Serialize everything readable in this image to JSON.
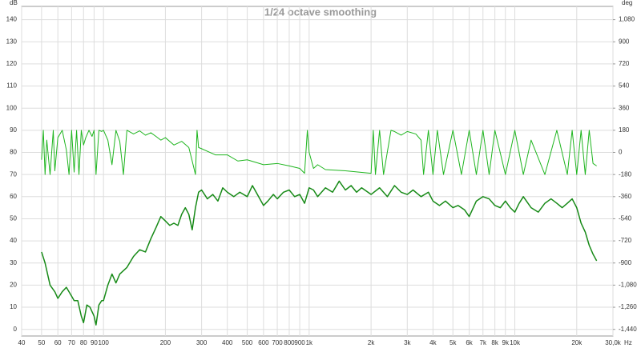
{
  "chart_data": {
    "type": "line",
    "title": "1/24 octave smoothing",
    "ylabel": "dB",
    "y2label": "deg",
    "xlabel": "Hz",
    "xscale": "log",
    "grid": true,
    "xlim": [
      40,
      30000
    ],
    "ylim": [
      -3,
      146
    ],
    "y2lim": [
      -1494,
      1188
    ],
    "xticks": [
      40,
      50,
      60,
      70,
      80,
      90,
      100,
      200,
      300,
      400,
      500,
      600,
      700,
      800,
      900,
      {
        "value": 1000,
        "label": "1k"
      },
      {
        "value": 2000,
        "label": "2k"
      },
      {
        "value": 3000,
        "label": "3k"
      },
      {
        "value": 4000,
        "label": "4k"
      },
      {
        "value": 5000,
        "label": "5k"
      },
      {
        "value": 6000,
        "label": "6k"
      },
      {
        "value": 7000,
        "label": "7k"
      },
      {
        "value": 8000,
        "label": "8k"
      },
      {
        "value": 9000,
        "label": "9k"
      },
      {
        "value": 10000,
        "label": "10k"
      },
      {
        "value": 20000,
        "label": "20k"
      },
      {
        "value": 30000,
        "label": "30,0k"
      }
    ],
    "yticks": [
      0,
      10,
      20,
      30,
      40,
      50,
      60,
      70,
      80,
      90,
      100,
      110,
      120,
      130,
      140
    ],
    "y2ticks": [
      {
        "value": -1440,
        "label": "-1,440"
      },
      {
        "value": -1260,
        "label": "-1,260"
      },
      {
        "value": -1080,
        "label": "-1,080"
      },
      -900,
      -720,
      -540,
      -360,
      -180,
      0,
      180,
      360,
      540,
      720,
      900,
      {
        "value": 1080,
        "label": "1,080"
      }
    ],
    "series": [
      {
        "color": "#178a17",
        "x": [
          50,
          52,
          55,
          58,
          60,
          63,
          66,
          70,
          72,
          75,
          78,
          80,
          83,
          86,
          90,
          92,
          95,
          98,
          100,
          105,
          110,
          115,
          120,
          130,
          140,
          150,
          160,
          170,
          180,
          190,
          200,
          210,
          220,
          230,
          240,
          250,
          260,
          270,
          280,
          290,
          300,
          320,
          340,
          360,
          380,
          400,
          430,
          460,
          500,
          530,
          560,
          600,
          630,
          670,
          700,
          750,
          800,
          850,
          900,
          950,
          1000,
          1050,
          1100,
          1200,
          1300,
          1400,
          1500,
          1600,
          1700,
          1800,
          2000,
          2200,
          2400,
          2600,
          2800,
          3000,
          3200,
          3500,
          3800,
          4000,
          4300,
          4600,
          5000,
          5300,
          5700,
          6000,
          6500,
          7000,
          7500,
          8000,
          8500,
          9000,
          9500,
          10000,
          10500,
          11000,
          12000,
          13000,
          14000,
          15000,
          16000,
          17000,
          18000,
          19000,
          20000,
          21000,
          22000,
          23000,
          24000,
          25000
        ],
        "values": [
          35,
          30,
          20,
          17,
          14,
          17,
          19,
          15,
          13,
          13,
          6,
          3,
          11,
          10,
          6,
          2,
          11,
          13,
          13,
          20,
          25,
          21,
          25,
          28,
          33,
          36,
          35,
          41,
          46,
          51,
          49,
          47,
          48,
          47,
          52,
          55,
          52,
          45,
          55,
          62,
          63,
          59,
          61,
          58,
          64,
          62,
          60,
          62,
          60,
          65,
          61,
          56,
          58,
          61,
          59,
          62,
          63,
          60,
          61,
          57,
          64,
          63,
          60,
          64,
          62,
          67,
          63,
          65,
          62,
          64,
          61,
          64,
          60,
          65,
          62,
          61,
          63,
          60,
          62,
          58,
          56,
          58,
          55,
          56,
          54,
          51,
          58,
          60,
          59,
          56,
          55,
          58,
          55,
          53,
          57,
          60,
          55,
          53,
          57,
          59,
          57,
          55,
          57,
          59,
          55,
          48,
          44,
          38,
          34,
          31
        ]
      },
      {
        "color": "#1fb51f",
        "axis": "y2",
        "x": [
          50,
          51,
          52,
          53,
          55,
          57,
          58,
          60,
          63,
          66,
          68,
          70,
          72,
          74,
          76,
          78,
          80,
          82,
          85,
          88,
          90,
          92,
          95,
          98,
          100,
          105,
          110,
          115,
          120,
          125,
          130,
          140,
          150,
          160,
          170,
          180,
          190,
          200,
          220,
          240,
          260,
          270,
          280,
          285,
          290,
          300,
          350,
          400,
          450,
          500,
          600,
          700,
          800,
          900,
          950,
          980,
          1000,
          1050,
          1100,
          1200,
          1500,
          2000,
          2050,
          2100,
          2200,
          2300,
          2500,
          2600,
          2800,
          3000,
          3300,
          3500,
          3600,
          3800,
          4000,
          4200,
          4500,
          5000,
          5500,
          6000,
          6500,
          7000,
          7500,
          8000,
          9000,
          10000,
          11000,
          12000,
          14000,
          16000,
          18000,
          19000,
          20000,
          21000,
          22000,
          23000,
          24000,
          25000
        ],
        "values": [
          -60,
          180,
          -180,
          100,
          -180,
          180,
          -150,
          120,
          180,
          20,
          -180,
          180,
          -160,
          180,
          -180,
          180,
          60,
          120,
          180,
          130,
          180,
          -180,
          180,
          170,
          180,
          100,
          -100,
          180,
          90,
          -180,
          180,
          150,
          175,
          140,
          160,
          130,
          100,
          120,
          60,
          90,
          40,
          -70,
          -180,
          180,
          40,
          30,
          -20,
          -20,
          -70,
          -60,
          -100,
          -90,
          -110,
          -130,
          -170,
          180,
          0,
          -130,
          -100,
          -140,
          -150,
          -170,
          180,
          -180,
          180,
          -180,
          180,
          170,
          140,
          170,
          150,
          100,
          -180,
          180,
          -180,
          180,
          -180,
          180,
          -180,
          180,
          -180,
          180,
          -180,
          180,
          -180,
          180,
          -180,
          100,
          -180,
          180,
          -180,
          180,
          -180,
          180,
          -180,
          180,
          -90,
          -110
        ]
      }
    ]
  }
}
